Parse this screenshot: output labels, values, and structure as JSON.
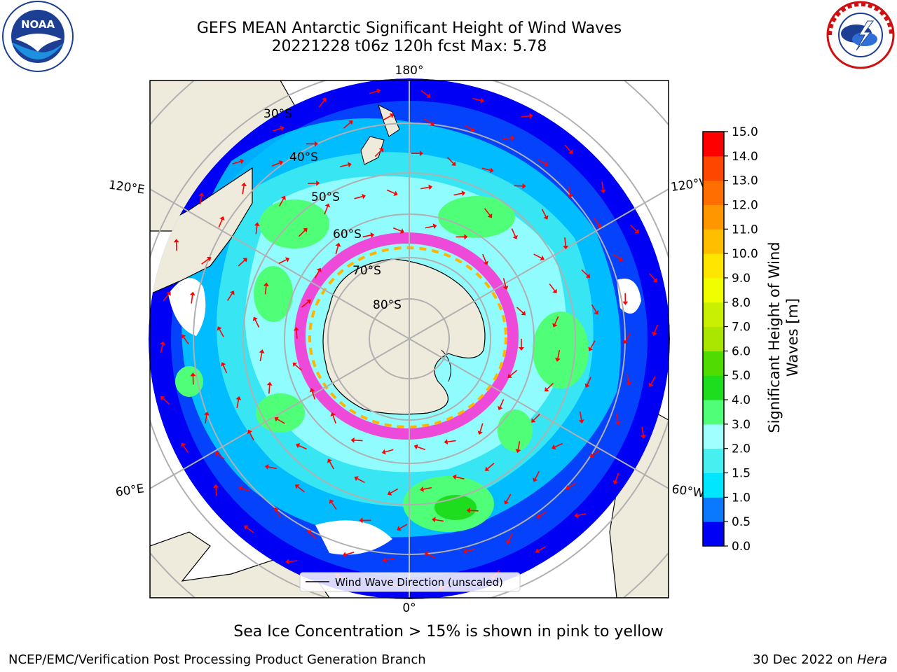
{
  "title": {
    "line1": "GEFS MEAN Antarctic Significant Height of Wind Waves",
    "line2": "20221228 t06z 120h fcst   Max: 5.78"
  },
  "map": {
    "projection": "south-polar-stereographic",
    "longitude_labels": {
      "top": "180°",
      "bottom": "0°",
      "upper_left": "120°E",
      "lower_left": "60°E",
      "upper_right": "120°W",
      "lower_right": "60°W"
    },
    "latitude_labels": [
      "30°S",
      "40°S",
      "50°S",
      "60°S",
      "70°S",
      "80°S"
    ],
    "legend_label": "Wind Wave Direction (unscaled)",
    "colors": {
      "land": "#efebdc",
      "arrow": "#ff0000",
      "gridline": "#b0b0b0"
    }
  },
  "colorbar": {
    "label_line1": "Significant Height of Wind",
    "label_line2": "Waves [m]",
    "ticks": [
      "0.0",
      "0.5",
      "1.0",
      "1.5",
      "2.0",
      "3.0",
      "4.0",
      "5.0",
      "6.0",
      "7.0",
      "8.0",
      "9.0",
      "10.0",
      "11.0",
      "12.0",
      "13.0",
      "14.0",
      "15.0"
    ],
    "colors": [
      "#0000f5",
      "#0a78ff",
      "#00e6ff",
      "#46f0f0",
      "#a0ffff",
      "#50ff78",
      "#1edc1e",
      "#50dc00",
      "#aae600",
      "#c8f000",
      "#f0ff00",
      "#ffe600",
      "#ffbe00",
      "#ff9600",
      "#ff6e00",
      "#ff4600",
      "#ff0000"
    ]
  },
  "caption": "Sea Ice Concentration > 15% is shown in pink to yellow",
  "footer": {
    "left": "NCEP/EMC/Verification Post Processing Product Generation Branch",
    "right_date": "30 Dec 2022 on ",
    "right_host": "Hera"
  },
  "logos": {
    "left_icon": "noaa-logo",
    "left_text": "NOAA",
    "right_icon": "nws-logo",
    "right_ring_text": "NATIONAL WEATHER SERVICE"
  }
}
